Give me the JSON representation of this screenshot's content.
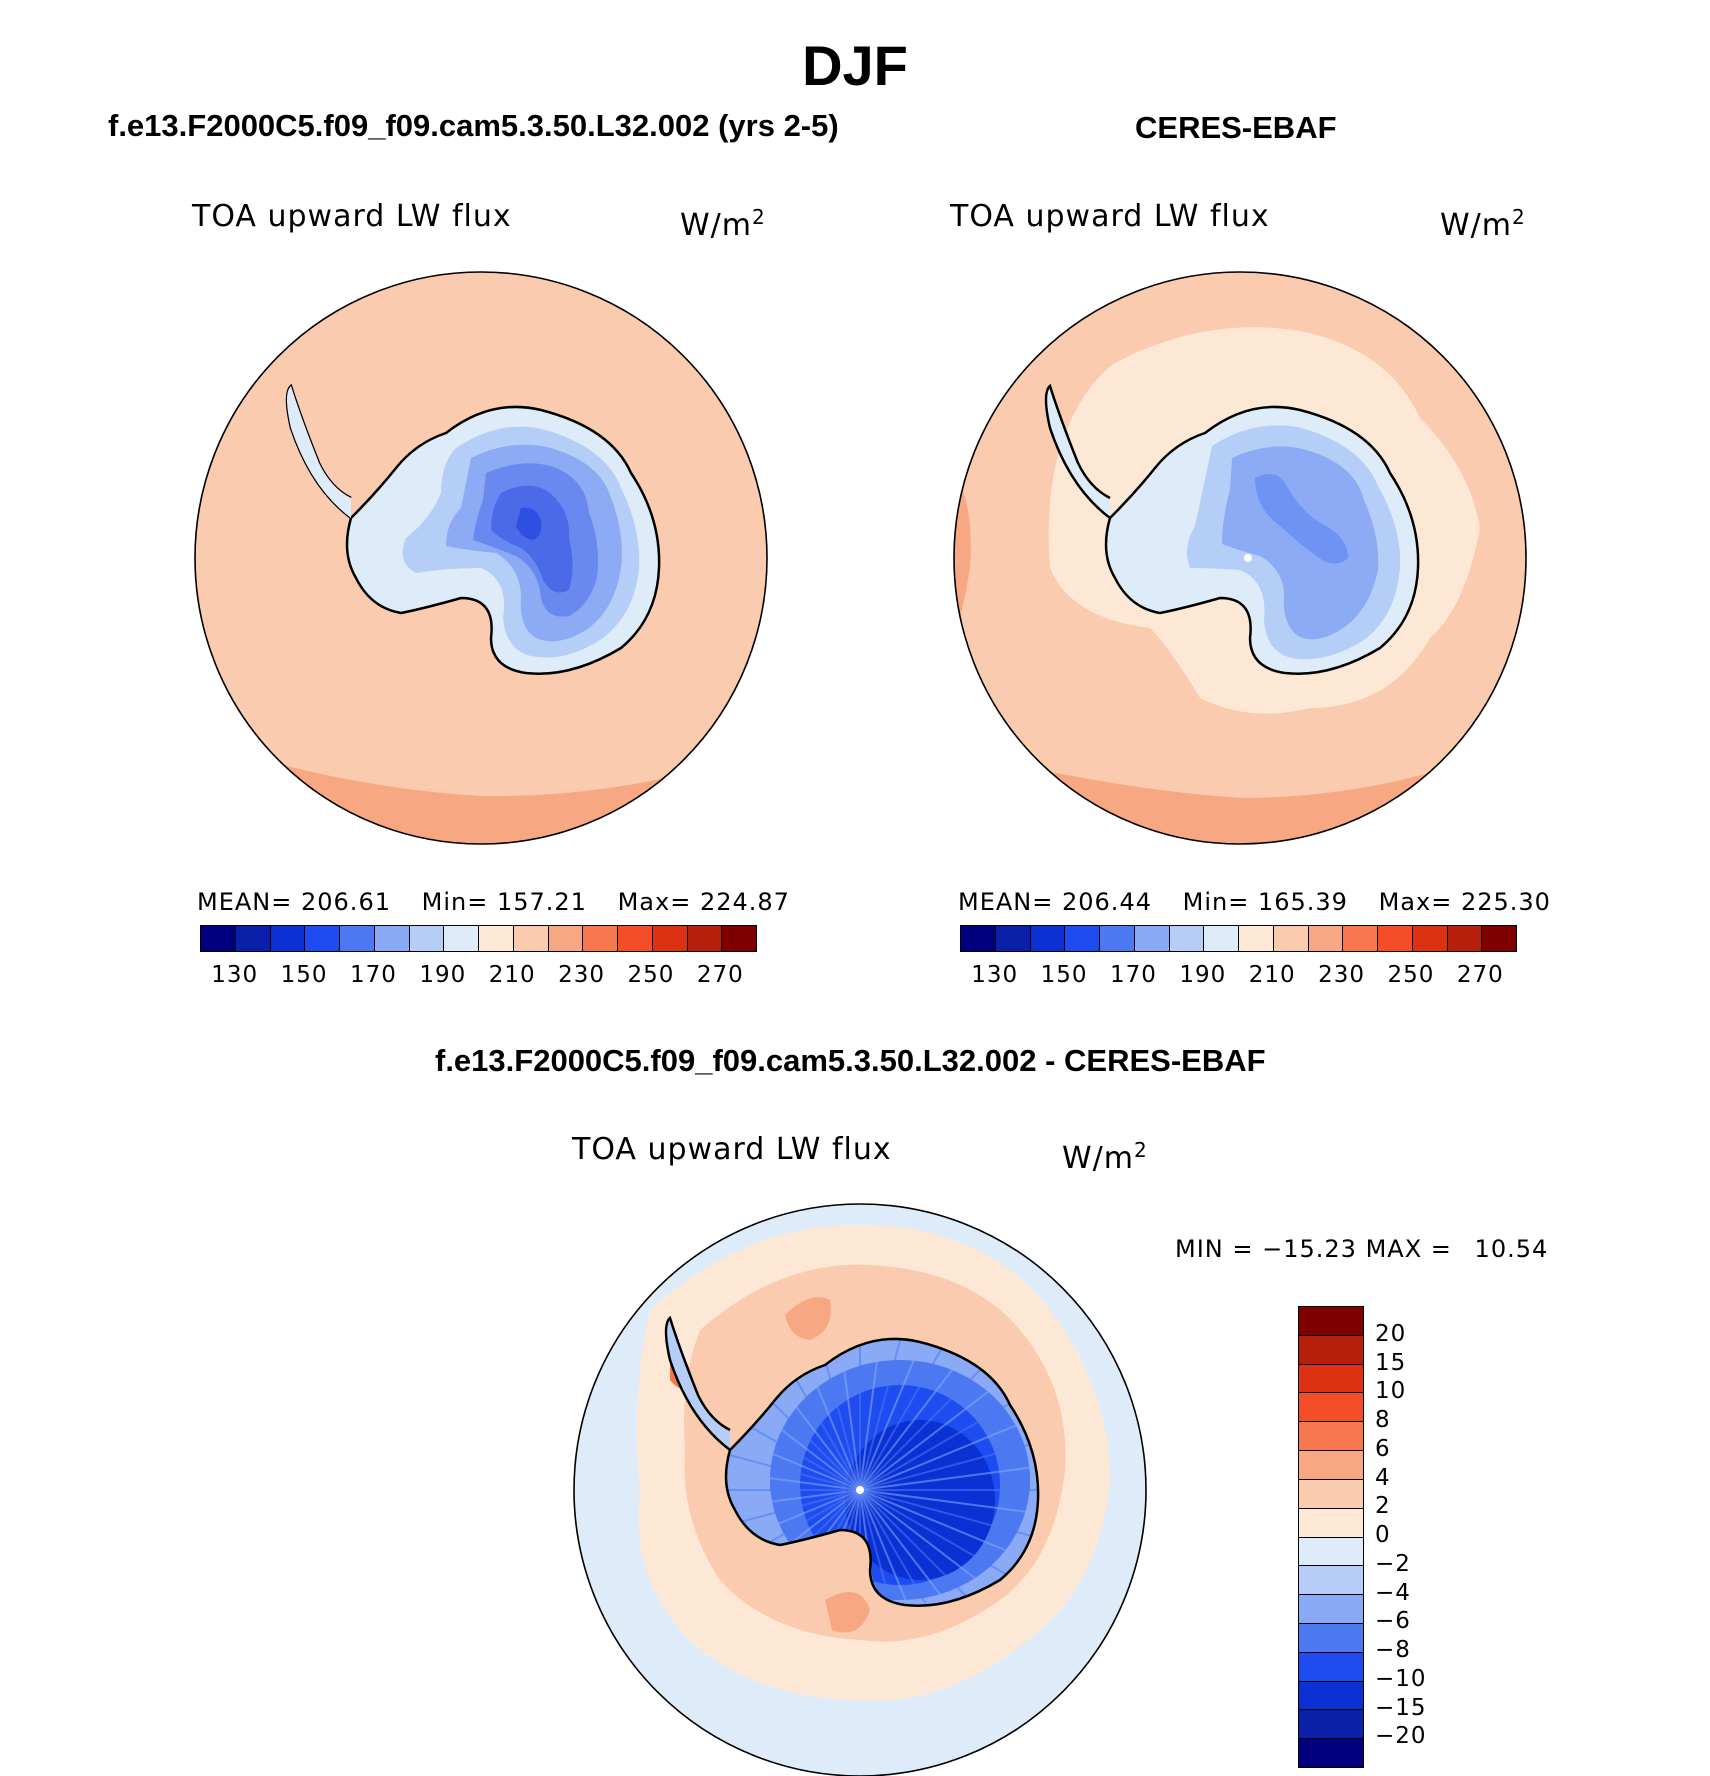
{
  "title": "DJF",
  "panels": [
    {
      "id": "model",
      "header": "f.e13.F2000C5.f09_f09.cam5.3.50.L32.002 (yrs 2-5)",
      "variable": "TOA upward LW flux",
      "unit": "W/m",
      "unit_exp": "2",
      "stats": {
        "mean_label": "MEAN=",
        "mean": "206.61",
        "min_label": "Min=",
        "min": "157.21",
        "max_label": "Max=",
        "max": "224.87"
      },
      "ocean_color": "#fbcbb0",
      "outer_color": "#f8a783",
      "land_colors": [
        "#ddecf8",
        "#b5cef7",
        "#8daaf5",
        "#6989f0",
        "#4a6ae8",
        "#2e50e2"
      ]
    },
    {
      "id": "obs",
      "header": "CERES-EBAF",
      "variable": "TOA upward LW flux",
      "unit": "W/m",
      "unit_exp": "2",
      "stats": {
        "mean_label": "MEAN=",
        "mean": "206.44",
        "min_label": "Min=",
        "min": "165.39",
        "max_label": "Max=",
        "max": "225.30"
      },
      "ocean_color": "#fbcbb0",
      "outer_color": "#f8a783",
      "land_colors": [
        "#ddecf8",
        "#b5cef7",
        "#8daaf5",
        "#6f93f2"
      ]
    }
  ],
  "abs_colorbar": {
    "colors": [
      "#00007f",
      "#0a20a8",
      "#0b31d4",
      "#1f4cf0",
      "#4c78f2",
      "#8aaaf5",
      "#b6cdf7",
      "#ddecf8",
      "#fde8d6",
      "#fbcbb0",
      "#f8a783",
      "#f7774e",
      "#f54d27",
      "#dc3212",
      "#b51f0b",
      "#800000"
    ],
    "ticks": [
      "130",
      "150",
      "170",
      "190",
      "210",
      "230",
      "250",
      "270"
    ]
  },
  "diff_panel": {
    "header": "f.e13.F2000C5.f09_f09.cam5.3.50.L32.002 - CERES-EBAF",
    "variable": "TOA upward LW flux",
    "unit": "W/m",
    "unit_exp": "2",
    "stats": {
      "min_label": "MIN =",
      "min": "−15.23",
      "max_label": "MAX =",
      "max": "10.54"
    },
    "colorbar": {
      "colors": [
        "#00007f",
        "#0a20a8",
        "#0b31d4",
        "#1f4cf0",
        "#4c78f2",
        "#8aaaf5",
        "#b6cdf7",
        "#ddecf8",
        "#fde8d6",
        "#fbcbb0",
        "#f8a783",
        "#f7774e",
        "#f54d27",
        "#dc3212",
        "#b51f0b",
        "#800000"
      ],
      "ticks": [
        "−20",
        "−15",
        "−10",
        "−8",
        "−6",
        "−4",
        "−2",
        "0",
        "2",
        "4",
        "6",
        "8",
        "10",
        "15",
        "20"
      ]
    }
  }
}
